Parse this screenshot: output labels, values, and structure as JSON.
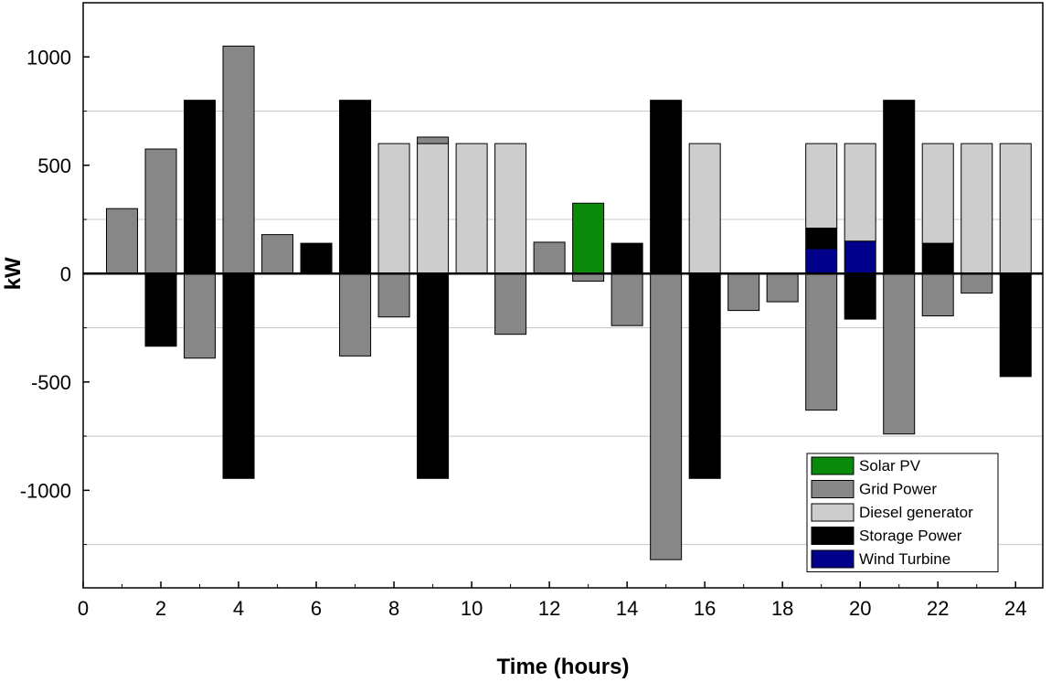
{
  "chart_data": {
    "type": "bar",
    "stacked": true,
    "xlabel": "Time (hours)",
    "ylabel": "kW",
    "xlim": [
      0,
      24.7
    ],
    "ylim": [
      -1450,
      1250
    ],
    "x_ticks": [
      0,
      2,
      4,
      6,
      8,
      10,
      12,
      14,
      16,
      18,
      20,
      22,
      24
    ],
    "y_ticks": [
      -1000,
      -500,
      0,
      500,
      1000
    ],
    "y_gridlines": [
      -1250,
      -750,
      -250,
      250,
      750
    ],
    "legend_position": "bottom-right",
    "series": [
      {
        "name": "Solar PV",
        "color": "#0a8a0a",
        "values": [
          0,
          0,
          0,
          0,
          0,
          0,
          0,
          0,
          0,
          0,
          0,
          0,
          325,
          0,
          0,
          0,
          0,
          0,
          0,
          0,
          0,
          0,
          0,
          0
        ]
      },
      {
        "name": "Grid Power",
        "color": "#878787",
        "values": [
          300,
          575,
          -390,
          1050,
          180,
          0,
          -380,
          -200,
          30,
          0,
          -280,
          145,
          -35,
          -240,
          -1320,
          0,
          -170,
          -130,
          -630,
          0,
          -740,
          -195,
          -90,
          0
        ]
      },
      {
        "name": "Diesel generator",
        "color": "#cdcdcd",
        "values": [
          0,
          0,
          0,
          0,
          0,
          0,
          0,
          600,
          600,
          600,
          600,
          0,
          0,
          0,
          0,
          600,
          0,
          0,
          390,
          450,
          0,
          460,
          600,
          600
        ]
      },
      {
        "name": "Storage Power",
        "color": "#000000",
        "values": [
          0,
          -335,
          800,
          -945,
          0,
          140,
          800,
          0,
          -945,
          0,
          0,
          0,
          0,
          140,
          800,
          -945,
          0,
          0,
          95,
          -210,
          800,
          140,
          0,
          -475
        ]
      },
      {
        "name": "Wind Turbine",
        "color": "#00008b",
        "values": [
          0,
          0,
          0,
          0,
          0,
          0,
          0,
          0,
          0,
          0,
          0,
          0,
          0,
          0,
          0,
          0,
          0,
          0,
          115,
          150,
          0,
          0,
          0,
          0
        ]
      }
    ],
    "stack_order_positive": [
      "Wind Turbine",
      "Solar PV",
      "Storage Power",
      "Diesel generator",
      "Grid Power"
    ],
    "stack_order_negative": [
      "Solar PV",
      "Grid Power",
      "Storage Power"
    ]
  }
}
